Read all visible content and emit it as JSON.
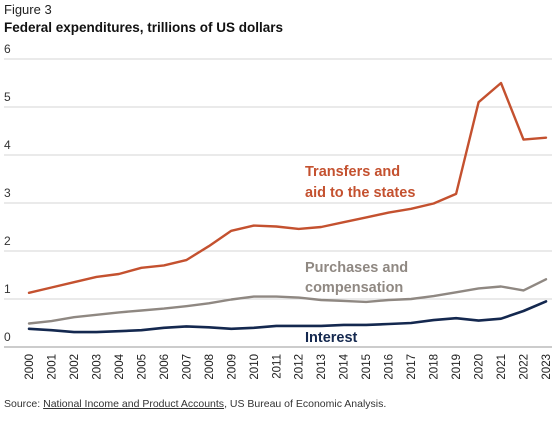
{
  "figure_label": "Figure 3",
  "source": {
    "prefix": "Source: ",
    "link_text": "National Income and Product Accounts",
    "suffix": ", US Bureau of Economic Analysis."
  },
  "chart_data": {
    "type": "line",
    "title": "Federal expenditures, trillions of US dollars",
    "xlabel": "",
    "ylabel": "",
    "ylim": [
      0,
      6
    ],
    "yticks": [
      0,
      1,
      2,
      3,
      4,
      5,
      6
    ],
    "grid": "horizontal",
    "legend": "inline labels",
    "x": [
      "2000",
      "2001",
      "2002",
      "2003",
      "2004",
      "2005",
      "2006",
      "2007",
      "2008",
      "2009",
      "2010",
      "2011",
      "2012",
      "2013",
      "2014",
      "2015",
      "2016",
      "2017",
      "2018",
      "2019",
      "2020",
      "2021",
      "2022",
      "2023"
    ],
    "series": [
      {
        "name": "Transfers and aid to the states",
        "label_lines": [
          "Transfers and",
          "aid to the states"
        ],
        "color": "#c4512f",
        "values": [
          1.13,
          1.24,
          1.35,
          1.46,
          1.52,
          1.65,
          1.7,
          1.81,
          2.1,
          2.42,
          2.53,
          2.51,
          2.46,
          2.5,
          2.6,
          2.7,
          2.8,
          2.88,
          2.99,
          3.19,
          5.1,
          5.5,
          4.32,
          4.36
        ]
      },
      {
        "name": "Purchases and compensation",
        "label_lines": [
          "Purchases and",
          "compensation"
        ],
        "color": "#8f8882",
        "values": [
          0.49,
          0.54,
          0.62,
          0.67,
          0.72,
          0.76,
          0.8,
          0.85,
          0.91,
          0.99,
          1.05,
          1.05,
          1.03,
          0.98,
          0.96,
          0.94,
          0.98,
          1.0,
          1.06,
          1.14,
          1.22,
          1.26,
          1.18,
          1.41
        ]
      },
      {
        "name": "Interest",
        "label_lines": [
          "Interest"
        ],
        "color": "#14284f",
        "values": [
          0.38,
          0.35,
          0.31,
          0.31,
          0.33,
          0.35,
          0.4,
          0.43,
          0.41,
          0.38,
          0.4,
          0.44,
          0.44,
          0.44,
          0.46,
          0.46,
          0.48,
          0.5,
          0.56,
          0.6,
          0.55,
          0.59,
          0.75,
          0.95
        ]
      }
    ]
  }
}
